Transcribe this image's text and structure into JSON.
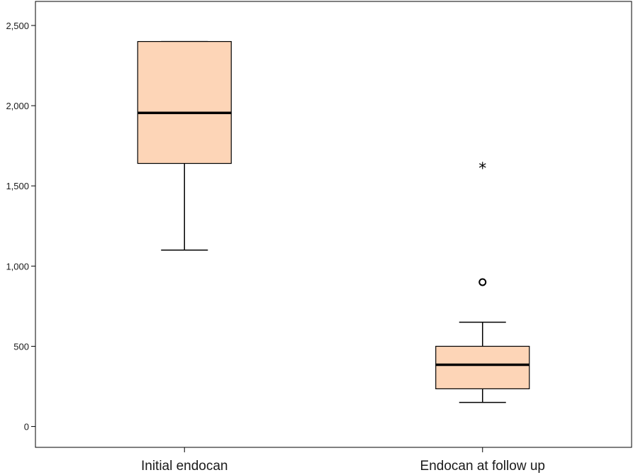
{
  "chart_data": {
    "type": "boxplot",
    "title": "",
    "xlabel": "",
    "ylabel": "",
    "ylim": [
      -130,
      2650
    ],
    "yticks": [
      0,
      500,
      1000,
      1500,
      2000,
      2500
    ],
    "ytick_labels": [
      "0",
      "500",
      "1,000",
      "1,500",
      "2,000",
      "2,500"
    ],
    "box_color": "#fdd5b7",
    "grid": false,
    "legend": "none",
    "categories": [
      "Initial endocan",
      "Endocan at follow up"
    ],
    "boxes": [
      {
        "category": "Initial endocan",
        "whisker_low": 1100,
        "q1": 1640,
        "median": 1955,
        "q3": 2400,
        "whisker_high": 2400,
        "outliers": []
      },
      {
        "category": "Endocan at follow up",
        "whisker_low": 150,
        "q1": 235,
        "median": 385,
        "q3": 500,
        "whisker_high": 650,
        "outliers": [
          {
            "value": 900,
            "marker": "circle"
          },
          {
            "value": 1620,
            "marker": "star"
          }
        ]
      }
    ]
  }
}
